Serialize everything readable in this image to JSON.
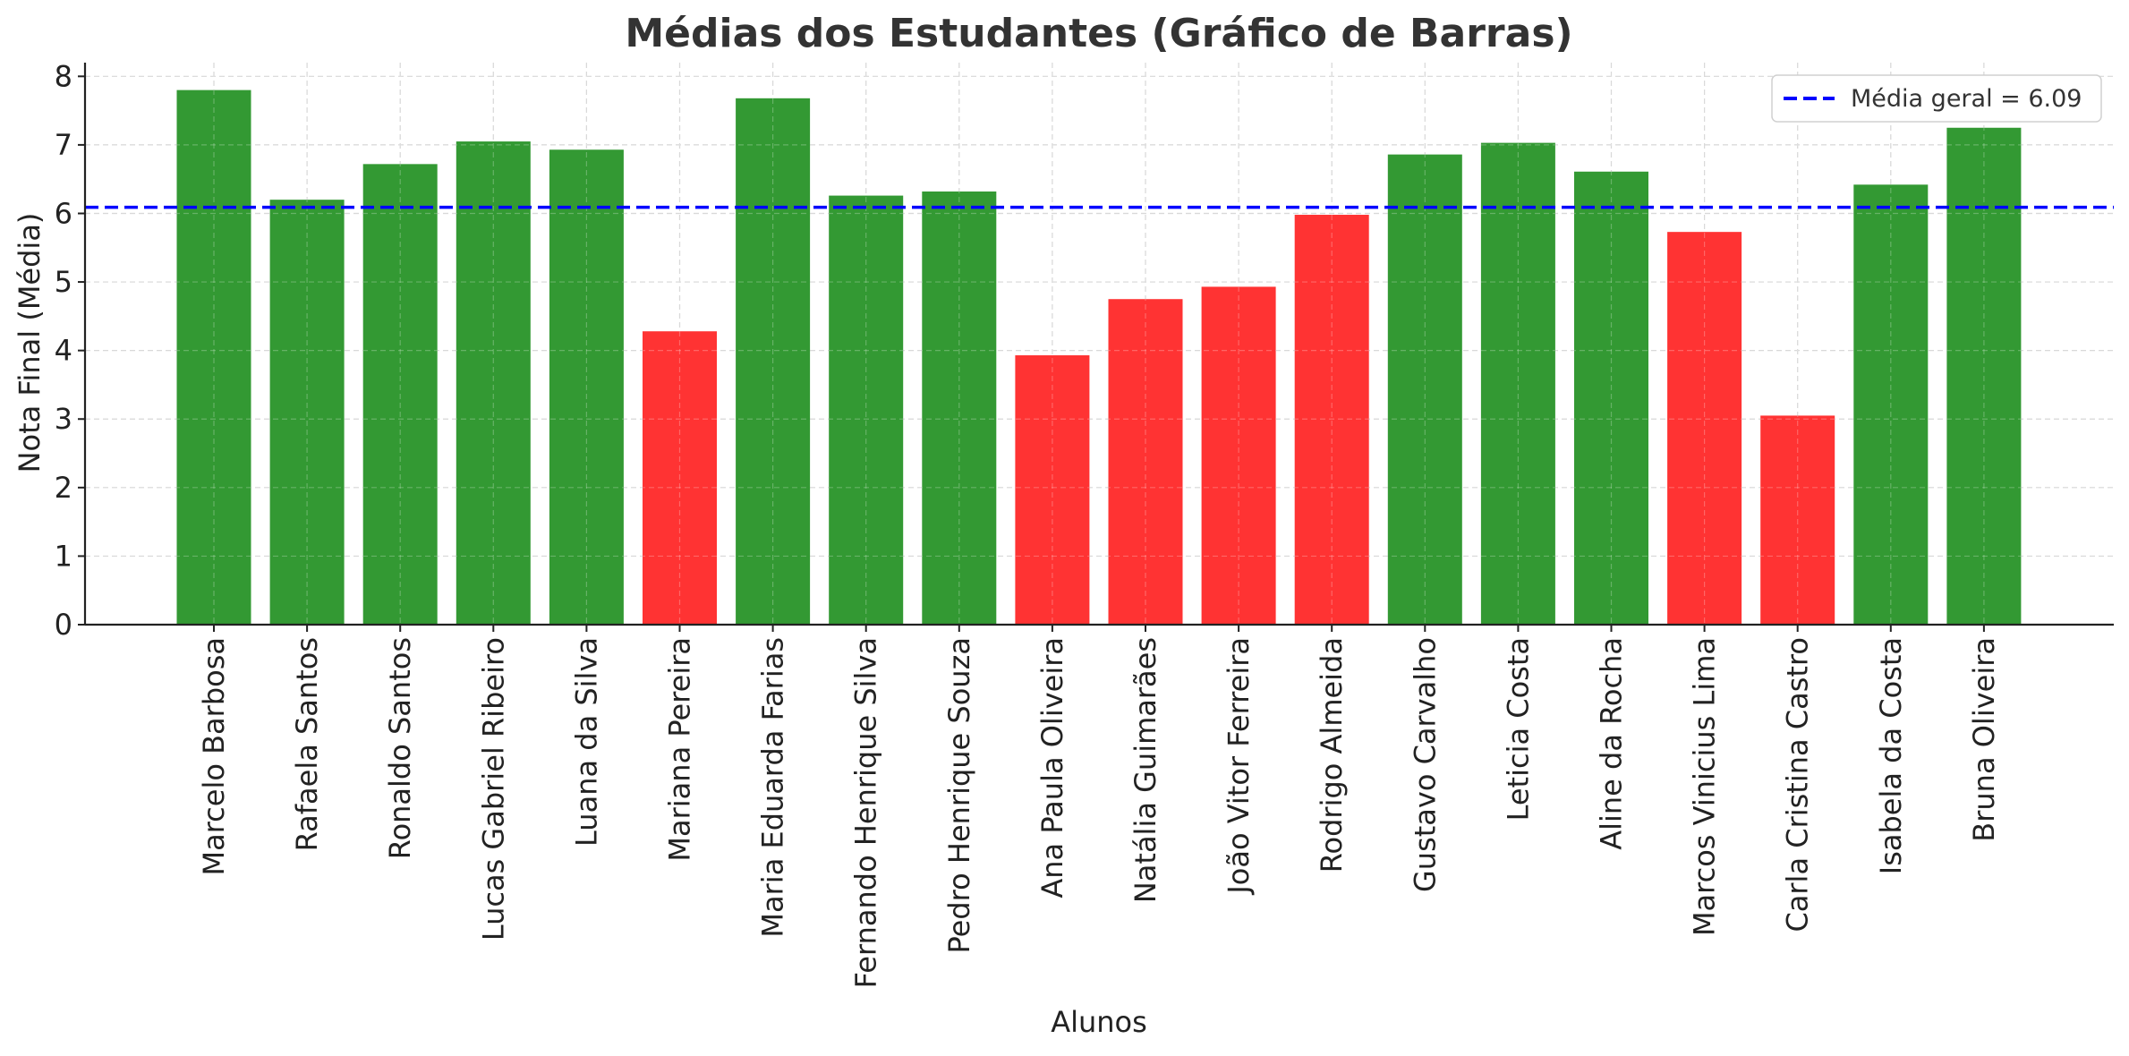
{
  "chart_data": {
    "type": "bar",
    "title": "Médias dos Estudantes (Gráfico de Barras)",
    "xlabel": "Alunos",
    "ylabel": "Nota Final (Média)",
    "ylim": [
      0,
      8.2
    ],
    "yticks": [
      0,
      1,
      2,
      3,
      4,
      5,
      6,
      7,
      8
    ],
    "grid": true,
    "colors": {
      "above_mean": "#339933",
      "below_mean": "#ff3333",
      "mean_line": "#0000ff",
      "grid": "#cccccc"
    },
    "categories": [
      "Marcelo Barbosa",
      "Rafaela Santos",
      "Ronaldo Santos",
      "Lucas Gabriel Ribeiro",
      "Luana da Silva",
      "Mariana Pereira",
      "Maria Eduarda Farias",
      "Fernando Henrique Silva",
      "Pedro Henrique Souza",
      "Ana Paula Oliveira",
      "Natália Guimarães",
      "João Vitor Ferreira",
      "Rodrigo Almeida",
      "Gustavo Carvalho",
      "Leticia Costa",
      "Aline da Rocha",
      "Marcos Vinicius Lima",
      "Carla Cristina Castro",
      "Isabela da Costa",
      "Bruna Oliveira"
    ],
    "values": [
      7.8,
      6.2,
      6.72,
      7.05,
      6.93,
      4.28,
      7.68,
      6.26,
      6.32,
      3.93,
      4.75,
      4.93,
      5.98,
      6.86,
      7.03,
      6.61,
      5.73,
      3.05,
      6.42,
      7.25
    ],
    "mean_line": {
      "value": 6.09,
      "label": "Média geral = 6.09",
      "style": "dashed"
    },
    "legend": {
      "placement": "top-right",
      "entries": [
        "Média geral = 6.09"
      ]
    }
  }
}
